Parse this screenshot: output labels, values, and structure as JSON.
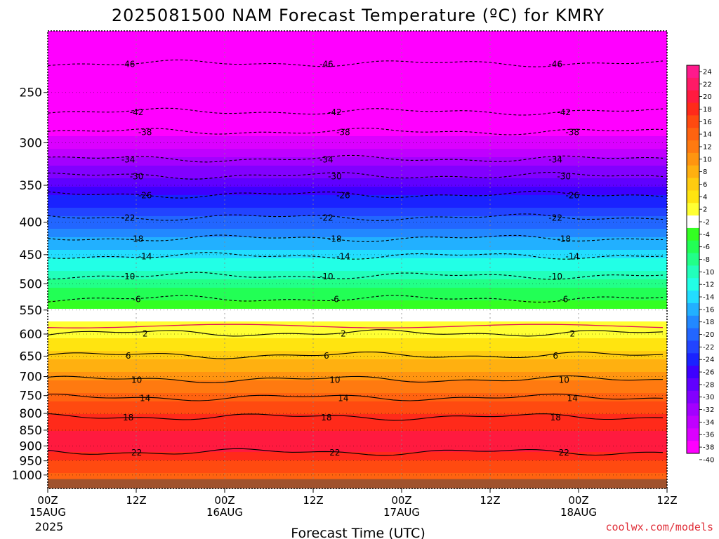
{
  "chart_data": {
    "type": "heatmap",
    "title": "2025081500 NAM Forecast Temperature (ºC) for KMRY",
    "xlabel": "Forecast Time (UTC)",
    "ylabel": "",
    "credit": "coolwx.com/models",
    "year_label": "2025",
    "x_range_hours": [
      0,
      84
    ],
    "x_ticks": [
      {
        "hour": 0,
        "label": "00Z",
        "date": "15AUG"
      },
      {
        "hour": 12,
        "label": "12Z",
        "date": ""
      },
      {
        "hour": 24,
        "label": "00Z",
        "date": "16AUG"
      },
      {
        "hour": 36,
        "label": "12Z",
        "date": ""
      },
      {
        "hour": 48,
        "label": "00Z",
        "date": "17AUG"
      },
      {
        "hour": 60,
        "label": "12Z",
        "date": ""
      },
      {
        "hour": 72,
        "label": "00Z",
        "date": "18AUG"
      },
      {
        "hour": 84,
        "label": "12Z",
        "date": ""
      }
    ],
    "y_axis": {
      "scale": "log",
      "reversed": true,
      "range_hPa": [
        1050,
        200
      ],
      "ticks": [
        250,
        300,
        350,
        400,
        450,
        500,
        550,
        600,
        650,
        700,
        750,
        800,
        850,
        900,
        950,
        1000
      ]
    },
    "underground_below_hPa": 1015,
    "colorbar_labels": [
      "24",
      "22",
      "20",
      "18",
      "16",
      "14",
      "12",
      "10",
      "8",
      "6",
      "4",
      "2",
      "-2",
      "-4",
      "-6",
      "-8",
      "-10",
      "-12",
      "-14",
      "-16",
      "-18",
      "-20",
      "-22",
      "-24",
      "-26",
      "-28",
      "-30",
      "-32",
      "-34",
      "-36",
      "-38",
      "-40"
    ],
    "colorbar_colors": [
      "#ff1a8c",
      "#ff1a66",
      "#ff1a3f",
      "#ff2a1a",
      "#ff4a10",
      "#ff6310",
      "#ff7a10",
      "#ff9510",
      "#ffb010",
      "#ffcc10",
      "#ffe410",
      "#ffff33",
      "#ffffff",
      "#33ff22",
      "#22ff55",
      "#22ff88",
      "#22ffbb",
      "#22ffe6",
      "#22ddff",
      "#22b0ff",
      "#2288ff",
      "#2266ff",
      "#2244ff",
      "#1a22ff",
      "#3d00ff",
      "#6000ff",
      "#8200ff",
      "#a300ff",
      "#c000ff",
      "#db00ff",
      "#ff00ff"
    ],
    "temperature_profile": {
      "pressure_hPa": [
        200,
        250,
        300,
        350,
        400,
        450,
        500,
        550,
        600,
        650,
        700,
        750,
        800,
        850,
        900,
        950,
        1000
      ],
      "temp_C": [
        -50,
        -44,
        -37,
        -28,
        -21,
        -15,
        -9,
        -4,
        1,
        5,
        9,
        13,
        16,
        18,
        19,
        16,
        14
      ]
    },
    "contours_C": [
      {
        "label": "-46",
        "pressure_hPa": 225
      },
      {
        "label": "-42",
        "pressure_hPa": 268
      },
      {
        "label": "-38",
        "pressure_hPa": 288
      },
      {
        "label": "-34",
        "pressure_hPa": 318
      },
      {
        "label": "-30",
        "pressure_hPa": 338
      },
      {
        "label": "-26",
        "pressure_hPa": 362
      },
      {
        "label": "-22",
        "pressure_hPa": 393
      },
      {
        "label": "-18",
        "pressure_hPa": 424
      },
      {
        "label": "-14",
        "pressure_hPa": 452
      },
      {
        "label": "-10",
        "pressure_hPa": 486
      },
      {
        "label": "-6",
        "pressure_hPa": 528
      },
      {
        "label": "2",
        "pressure_hPa": 598
      },
      {
        "label": "6",
        "pressure_hPa": 648
      },
      {
        "label": "10",
        "pressure_hPa": 707
      },
      {
        "label": "14",
        "pressure_hPa": 755
      },
      {
        "label": "18",
        "pressure_hPa": 810
      },
      {
        "label": "22",
        "pressure_hPa": 920
      }
    ],
    "freezing_line_hPa": 583,
    "grid": true,
    "legend": "right"
  }
}
